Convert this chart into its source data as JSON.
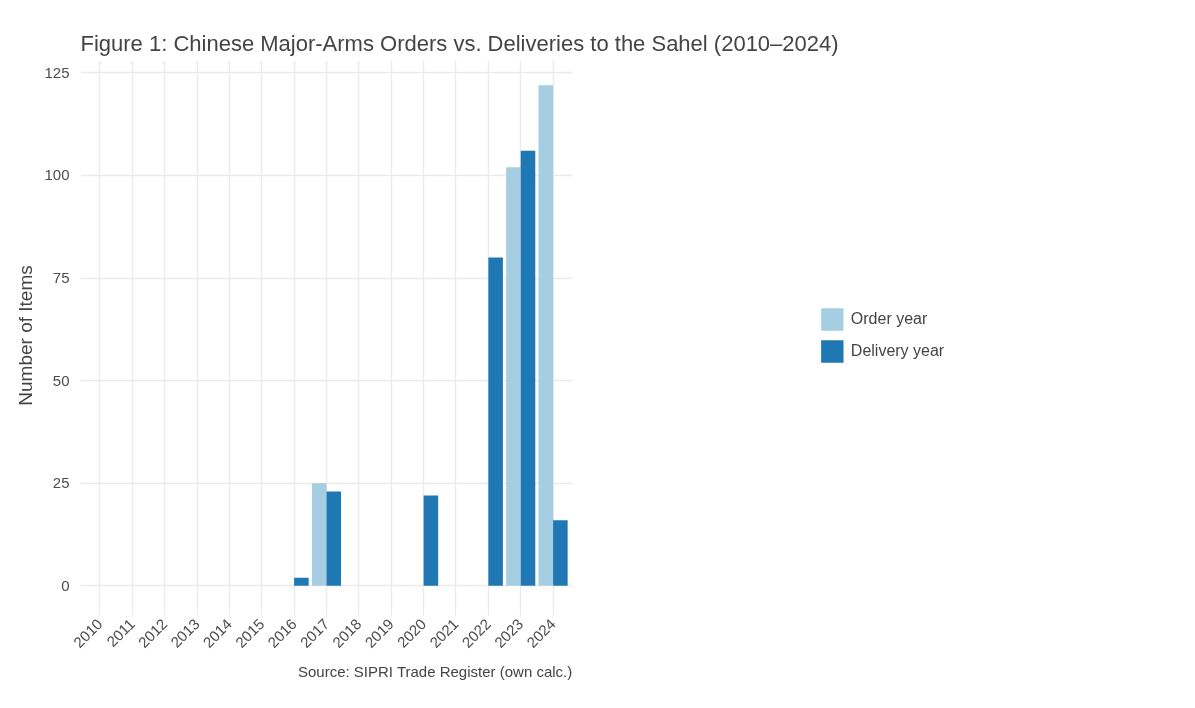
{
  "chart_data": {
    "type": "bar",
    "title": "Figure 1: Chinese Major-Arms Orders vs. Deliveries to the Sahel (2010–2024)",
    "ylabel": "Number of Items",
    "categories": [
      "2010",
      "2011",
      "2012",
      "2013",
      "2014",
      "2015",
      "2016",
      "2017",
      "2018",
      "2019",
      "2020",
      "2021",
      "2022",
      "2023",
      "2024"
    ],
    "series": [
      {
        "name": "Order year",
        "color": "#a6cee3",
        "values": [
          null,
          null,
          null,
          null,
          null,
          null,
          null,
          25,
          null,
          null,
          null,
          null,
          null,
          102,
          122
        ]
      },
      {
        "name": "Delivery year",
        "color": "#1f78b4",
        "values": [
          null,
          null,
          null,
          null,
          null,
          null,
          2,
          23,
          null,
          null,
          22,
          null,
          80,
          106,
          16
        ]
      }
    ],
    "ylim": [
      -6,
      128
    ],
    "yticks": [
      0,
      25,
      50,
      75,
      100,
      125
    ],
    "grid": true,
    "legend": "right",
    "annotations": [
      "Source: SIPRI Trade Register (own calc.)"
    ]
  }
}
